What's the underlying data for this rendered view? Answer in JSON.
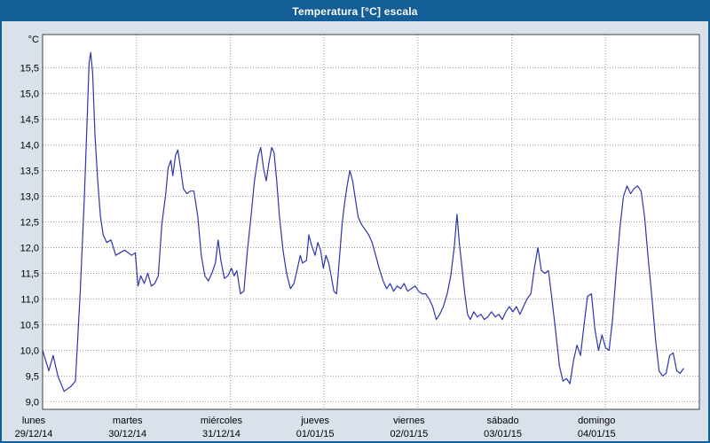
{
  "window": {
    "title": "Temperatura [°C] escala"
  },
  "chart_data": {
    "type": "line",
    "title": "Temperatura [°C] escala",
    "unit_label": "°C",
    "line_color": "#2d35ad",
    "title_bar_color": "#135e96",
    "background_color": "#d9e2eb",
    "plot_background": "#ffffff",
    "grid_color": "#9a9a9a",
    "axis_border_color": "#404040",
    "grid": true,
    "legend": false,
    "xlim_hours": [
      0,
      168
    ],
    "ylim": [
      8.85,
      16.15
    ],
    "y_ticks": [
      {
        "value": 9.0,
        "label": "9,0"
      },
      {
        "value": 9.5,
        "label": "9,5"
      },
      {
        "value": 10.0,
        "label": "10,0"
      },
      {
        "value": 10.5,
        "label": "10,5"
      },
      {
        "value": 11.0,
        "label": "11,0"
      },
      {
        "value": 11.5,
        "label": "11,5"
      },
      {
        "value": 12.0,
        "label": "12,0"
      },
      {
        "value": 12.5,
        "label": "12,5"
      },
      {
        "value": 13.0,
        "label": "13,0"
      },
      {
        "value": 13.5,
        "label": "13,5"
      },
      {
        "value": 14.0,
        "label": "14,0"
      },
      {
        "value": 14.5,
        "label": "14,5"
      },
      {
        "value": 15.0,
        "label": "15,0"
      },
      {
        "value": 15.5,
        "label": "15,5"
      }
    ],
    "x_day_labels": [
      {
        "day": "lunes",
        "date": "29/12/14",
        "start_hour": 0
      },
      {
        "day": "martes",
        "date": "30/12/14",
        "start_hour": 24
      },
      {
        "day": "miércoles",
        "date": "31/12/14",
        "start_hour": 48
      },
      {
        "day": "jueves",
        "date": "01/01/15",
        "start_hour": 72
      },
      {
        "day": "viernes",
        "date": "02/01/15",
        "start_hour": 96
      },
      {
        "day": "sábado",
        "date": "03/01/15",
        "start_hour": 120
      },
      {
        "day": "domingo",
        "date": "04/01/15",
        "start_hour": 144
      }
    ],
    "series": [
      {
        "name": "Temperatura",
        "x_hours": [
          0,
          1.6,
          2.7,
          3.9,
          5.5,
          7.3,
          8.4,
          9.6,
          10.7,
          11.4,
          11.9,
          12.3,
          12.8,
          13.4,
          14.1,
          14.8,
          15.5,
          16.4,
          17.5,
          18.7,
          19.8,
          21,
          22.8,
          23.7,
          24.4,
          25.1,
          26,
          26.9,
          27.8,
          28.7,
          29.6,
          30.5,
          31.5,
          32.1,
          32.8,
          33.3,
          34,
          34.6,
          35.3,
          36,
          36.9,
          37.8,
          38.7,
          39.7,
          40.6,
          41.5,
          42.4,
          43.3,
          44.2,
          44.9,
          45.6,
          46.5,
          47.4,
          48.3,
          49,
          49.7,
          50.6,
          51.5,
          52.4,
          53.3,
          54.2,
          55.2,
          55.8,
          56.5,
          57.2,
          57.9,
          58.6,
          59.2,
          59.9,
          60.6,
          61.5,
          62.4,
          63.4,
          64.3,
          65.2,
          65.9,
          66.5,
          67.5,
          68.1,
          68.8,
          69.7,
          70.4,
          71.1,
          71.8,
          72.5,
          73.2,
          73.8,
          74.5,
          75.2,
          75.9,
          76.6,
          77.3,
          77.9,
          78.6,
          79.3,
          80,
          80.7,
          81.6,
          82.5,
          83.4,
          84.3,
          85.2,
          86.1,
          87.1,
          88,
          88.9,
          89.8,
          90.7,
          91.6,
          92.5,
          93.4,
          94.3,
          95.3,
          96.2,
          97.1,
          98,
          98.9,
          99.8,
          100.7,
          101.6,
          102.5,
          103.5,
          104.4,
          105.3,
          106,
          106.6,
          107.3,
          108,
          108.7,
          109.4,
          110.3,
          111.2,
          112.1,
          113,
          113.9,
          114.8,
          115.8,
          116.7,
          117.6,
          118.5,
          119.4,
          120.3,
          121.2,
          122.1,
          123,
          123.9,
          124.9,
          125.8,
          126.7,
          127.6,
          128.5,
          129.4,
          130.3,
          131.2,
          132.2,
          133.1,
          134,
          134.9,
          135.8,
          136.7,
          137.6,
          138.5,
          139.4,
          140.4,
          141.3,
          142.2,
          143.1,
          144,
          144.9,
          145.8,
          146.7,
          147.7,
          148.6,
          149.5,
          150.4,
          151.3,
          152.2,
          153.1,
          154,
          154.9,
          155.9,
          156.8,
          157.7,
          158.6,
          159.5,
          160.4,
          161.3,
          162.2,
          163.1,
          164
        ],
        "y_celsius": [
          10,
          9.6,
          9.9,
          9.5,
          9.2,
          9.3,
          9.4,
          11.1,
          13,
          14.5,
          15.6,
          15.8,
          15.4,
          14.2,
          13.3,
          12.6,
          12.25,
          12.1,
          12.15,
          11.85,
          11.9,
          11.95,
          11.85,
          11.9,
          11.25,
          11.45,
          11.3,
          11.5,
          11.25,
          11.3,
          11.45,
          12.45,
          13.05,
          13.55,
          13.7,
          13.4,
          13.8,
          13.9,
          13.55,
          13.15,
          13.05,
          13.1,
          13.1,
          12.6,
          11.85,
          11.45,
          11.35,
          11.5,
          11.7,
          12.15,
          11.75,
          11.4,
          11.45,
          11.6,
          11.45,
          11.55,
          11.1,
          11.15,
          11.95,
          12.6,
          13.3,
          13.8,
          13.95,
          13.55,
          13.3,
          13.65,
          13.95,
          13.85,
          13.3,
          12.6,
          11.95,
          11.5,
          11.2,
          11.3,
          11.6,
          11.85,
          11.7,
          11.75,
          12.25,
          12.05,
          11.85,
          12.1,
          11.95,
          11.6,
          11.85,
          11.7,
          11.45,
          11.15,
          11.1,
          11.75,
          12.45,
          12.9,
          13.2,
          13.5,
          13.3,
          12.95,
          12.6,
          12.45,
          12.35,
          12.25,
          12.1,
          11.85,
          11.6,
          11.35,
          11.2,
          11.3,
          11.15,
          11.25,
          11.2,
          11.3,
          11.15,
          11.2,
          11.25,
          11.15,
          11.1,
          11.1,
          11,
          10.85,
          10.6,
          10.7,
          10.85,
          11.1,
          11.45,
          12,
          12.65,
          12.1,
          11.6,
          11.1,
          10.7,
          10.6,
          10.75,
          10.65,
          10.7,
          10.6,
          10.65,
          10.75,
          10.65,
          10.7,
          10.6,
          10.75,
          10.85,
          10.75,
          10.85,
          10.7,
          10.85,
          11,
          11.1,
          11.6,
          12,
          11.55,
          11.5,
          11.55,
          11,
          10.4,
          9.7,
          9.4,
          9.45,
          9.35,
          9.8,
          10.1,
          9.9,
          10.5,
          11.05,
          11.1,
          10.4,
          10,
          10.3,
          10.05,
          10,
          10.6,
          11.5,
          12.4,
          13,
          13.2,
          13.05,
          13.15,
          13.2,
          13.1,
          12.6,
          11.8,
          11,
          10.2,
          9.6,
          9.5,
          9.55,
          9.9,
          9.95,
          9.6,
          9.55,
          9.65
        ]
      }
    ]
  }
}
